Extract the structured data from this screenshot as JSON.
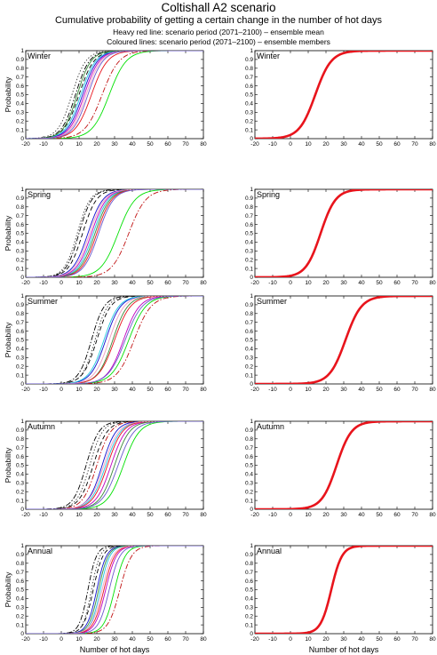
{
  "header": {
    "title": "Coltishall A2 scenario",
    "subtitle": "Cumulative probability of getting a certain change in the number of hot days",
    "note_mean": "Heavy red line: scenario period (2071–2100) – ensemble mean",
    "note_members": "Coloured lines: scenario period (2071–2100) – ensemble members"
  },
  "chart_data": {
    "type": "line",
    "xlabel": "Number of hot days",
    "ylabel": "Probability",
    "xlim": [
      -20,
      80
    ],
    "ylim": [
      0,
      1
    ],
    "xticks": [
      "-20",
      "-10",
      "0",
      "10",
      "20",
      "30",
      "40",
      "50",
      "60",
      "70",
      "80"
    ],
    "yticks": [
      "0",
      "0.1",
      "0.2",
      "0.3",
      "0.4",
      "0.5",
      "0.6",
      "0.7",
      "0.8",
      "0.9",
      "1"
    ],
    "grid": false,
    "colors": {
      "mean": "#e8141c",
      "members": [
        "#000000",
        "#000000",
        "#1010d0",
        "#20c8e0",
        "#c000c0",
        "#3a8a3a",
        "#e8141c",
        "#00e000",
        "#c01010",
        "#f0a0c0",
        "#404040",
        "#6a5acd"
      ]
    },
    "member_styles": [
      "dashdot",
      "dashed",
      "solid",
      "solid",
      "solid",
      "solid",
      "solid",
      "solid",
      "dashdot",
      "solid",
      "dotted",
      "solid"
    ],
    "panels": [
      {
        "name": "Winter",
        "mean": {
          "median": 14,
          "spread": 7.5
        },
        "members": [
          {
            "median": 8,
            "spread": 6.5
          },
          {
            "median": 10,
            "spread": 7
          },
          {
            "median": 12,
            "spread": 7
          },
          {
            "median": 11,
            "spread": 7
          },
          {
            "median": 13,
            "spread": 7
          },
          {
            "median": 9,
            "spread": 6.5
          },
          {
            "median": 17,
            "spread": 7.5
          },
          {
            "median": 27,
            "spread": 8
          },
          {
            "median": 23,
            "spread": 8
          },
          {
            "median": 14,
            "spread": 7
          },
          {
            "median": 6,
            "spread": 6.5
          },
          {
            "median": 15,
            "spread": 7
          }
        ]
      },
      {
        "name": "Spring",
        "mean": {
          "median": 17,
          "spread": 7
        },
        "members": [
          {
            "median": 10,
            "spread": 6
          },
          {
            "median": 12,
            "spread": 6.5
          },
          {
            "median": 15,
            "spread": 7
          },
          {
            "median": 18,
            "spread": 7
          },
          {
            "median": 17,
            "spread": 7
          },
          {
            "median": 19,
            "spread": 7
          },
          {
            "median": 20,
            "spread": 7
          },
          {
            "median": 32,
            "spread": 8
          },
          {
            "median": 38,
            "spread": 8
          },
          {
            "median": 16,
            "spread": 7
          },
          {
            "median": 9,
            "spread": 6
          },
          {
            "median": 21,
            "spread": 7
          }
        ]
      },
      {
        "name": "Summer",
        "mean": {
          "median": 31,
          "spread": 7.5
        },
        "members": [
          {
            "median": 17,
            "spread": 6
          },
          {
            "median": 20,
            "spread": 6.5
          },
          {
            "median": 25,
            "spread": 7
          },
          {
            "median": 24,
            "spread": 7
          },
          {
            "median": 35,
            "spread": 7.5
          },
          {
            "median": 29,
            "spread": 7
          },
          {
            "median": 30,
            "spread": 7.5
          },
          {
            "median": 38,
            "spread": 8
          },
          {
            "median": 41,
            "spread": 8
          },
          {
            "median": 27,
            "spread": 7
          },
          {
            "median": 19,
            "spread": 6
          },
          {
            "median": 36,
            "spread": 8
          }
        ]
      },
      {
        "name": "Autumn",
        "mean": {
          "median": 26,
          "spread": 7
        },
        "members": [
          {
            "median": 14,
            "spread": 6
          },
          {
            "median": 18,
            "spread": 6.5
          },
          {
            "median": 23,
            "spread": 6.5
          },
          {
            "median": 25,
            "spread": 7
          },
          {
            "median": 28,
            "spread": 7
          },
          {
            "median": 30,
            "spread": 7
          },
          {
            "median": 26,
            "spread": 7
          },
          {
            "median": 35,
            "spread": 7.5
          },
          {
            "median": 20,
            "spread": 6.5
          },
          {
            "median": 24,
            "spread": 7
          },
          {
            "median": 16,
            "spread": 6
          },
          {
            "median": 32,
            "spread": 7.5
          }
        ]
      },
      {
        "name": "Annual",
        "mean": {
          "median": 23,
          "spread": 5
        },
        "members": [
          {
            "median": 15,
            "spread": 4
          },
          {
            "median": 18,
            "spread": 4.5
          },
          {
            "median": 20,
            "spread": 4.5
          },
          {
            "median": 22,
            "spread": 4.5
          },
          {
            "median": 25,
            "spread": 5
          },
          {
            "median": 21,
            "spread": 4.5
          },
          {
            "median": 24,
            "spread": 5
          },
          {
            "median": 30,
            "spread": 5
          },
          {
            "median": 33,
            "spread": 5.5
          },
          {
            "median": 23,
            "spread": 5
          },
          {
            "median": 17,
            "spread": 4
          },
          {
            "median": 27,
            "spread": 5
          }
        ]
      }
    ]
  }
}
